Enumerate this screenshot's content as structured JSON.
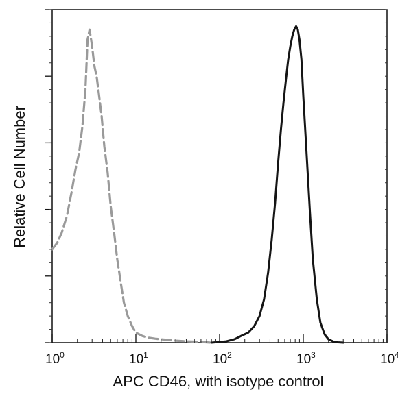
{
  "chart_data": {
    "type": "line",
    "title": "",
    "xlabel": "APC CD46, with isotype control",
    "ylabel": "Relative Cell Number",
    "x_scale": "log",
    "xlim": [
      1,
      10000
    ],
    "ylim": [
      0,
      100
    ],
    "grid": false,
    "x_ticks": [
      {
        "value": 1,
        "base": "10",
        "exp": "0"
      },
      {
        "value": 10,
        "base": "10",
        "exp": "1"
      },
      {
        "value": 100,
        "base": "10",
        "exp": "2"
      },
      {
        "value": 1000,
        "base": "10",
        "exp": "3"
      },
      {
        "value": 10000,
        "base": "10",
        "exp": "4"
      }
    ],
    "series": [
      {
        "style": "dashed",
        "color": "#9a9a9a",
        "x": [
          1.0,
          1.15,
          1.3,
          1.5,
          1.7,
          1.9,
          2.1,
          2.3,
          2.5,
          2.65,
          2.8,
          3.0,
          3.2,
          3.4,
          3.6,
          3.9,
          4.2,
          4.6,
          5.0,
          5.5,
          6.0,
          6.6,
          7.2,
          8.0,
          9.0,
          10,
          12,
          14,
          17,
          20,
          25,
          30,
          40,
          50,
          60,
          80
        ],
        "y": [
          28,
          30,
          33,
          38,
          45,
          52,
          57,
          65,
          76,
          91,
          94,
          89,
          83,
          80,
          75,
          68,
          59,
          51,
          41,
          33,
          25,
          18,
          12,
          8,
          5,
          3,
          2,
          1.5,
          1.2,
          1,
          0.8,
          0.6,
          0.4,
          0.3,
          0.2,
          0
        ]
      },
      {
        "style": "solid",
        "color": "#151515",
        "x": [
          80,
          120,
          150,
          180,
          220,
          260,
          300,
          340,
          380,
          420,
          460,
          500,
          540,
          580,
          620,
          660,
          700,
          740,
          780,
          820,
          860,
          900,
          950,
          1000,
          1100,
          1200,
          1300,
          1450,
          1600,
          1800,
          2000,
          2300,
          2600,
          3000
        ],
        "y": [
          0,
          0.4,
          1,
          2,
          3,
          5,
          8,
          13,
          21,
          31,
          42,
          54,
          64,
          72,
          79,
          85,
          89,
          92,
          94,
          95,
          94,
          91,
          85,
          74,
          56,
          39,
          25,
          13,
          6,
          2.5,
          1,
          0.3,
          0.1,
          0
        ]
      }
    ]
  }
}
